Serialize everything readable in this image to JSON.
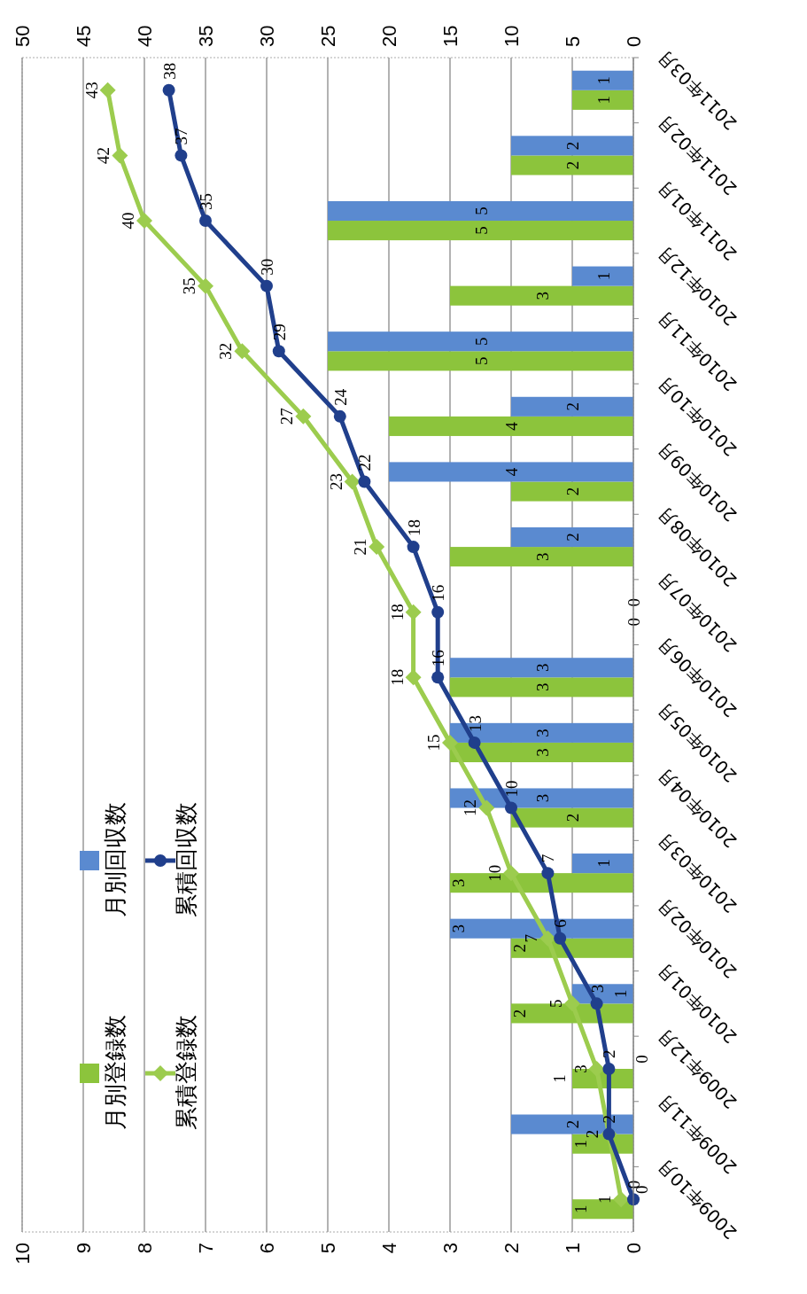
{
  "chart_data": {
    "type": "bar",
    "orientation": "horizontal",
    "categories": [
      "2011年03月",
      "2011年02月",
      "2011年01月",
      "2010年12月",
      "2010年11月",
      "2010年10月",
      "2010年09月",
      "2010年08月",
      "2010年07月",
      "2010年06月",
      "2010年05月",
      "2010年04月",
      "2010年03月",
      "2010年02月",
      "2010年01月",
      "2009年12月",
      "2009年11月",
      "2009年10月"
    ],
    "series": [
      {
        "name": "月別登録数",
        "color": "#8cc43c",
        "values": [
          1,
          2,
          5,
          3,
          5,
          4,
          2,
          3,
          0,
          3,
          3,
          2,
          3,
          2,
          2,
          1,
          1,
          1
        ]
      },
      {
        "name": "月別回収数",
        "color": "#5a8ad0",
        "values": [
          1,
          2,
          5,
          1,
          5,
          2,
          4,
          2,
          0,
          3,
          3,
          3,
          1,
          3,
          1,
          0,
          2,
          0
        ]
      },
      {
        "name": "累積登録数",
        "type": "line",
        "axis": "x2",
        "marker": "diamond",
        "color": "#9ccc4e",
        "values": [
          43,
          42,
          40,
          35,
          32,
          27,
          23,
          21,
          18,
          18,
          15,
          12,
          10,
          7,
          5,
          3,
          2,
          1
        ]
      },
      {
        "name": "累積回収数",
        "type": "line",
        "axis": "x2",
        "marker": "circle",
        "color": "#203f8c",
        "values": [
          38,
          37,
          35,
          30,
          29,
          24,
          22,
          18,
          16,
          16,
          13,
          10,
          7,
          6,
          3,
          2,
          2,
          0
        ]
      }
    ],
    "xlim": [
      10,
      0
    ],
    "xticks": [
      10,
      9,
      8,
      7,
      6,
      5,
      4,
      3,
      2,
      1,
      0
    ],
    "x2lim": [
      50,
      0
    ],
    "x2ticks": [
      50,
      45,
      40,
      35,
      30,
      25,
      20,
      15,
      10,
      5,
      0
    ],
    "grid": "x",
    "legend": "bottom left",
    "data_labels": true
  }
}
